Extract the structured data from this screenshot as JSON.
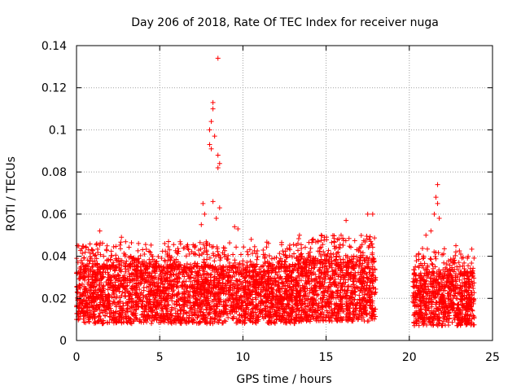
{
  "chart_data": {
    "type": "scatter",
    "title": "Day 206 of 2018, Rate Of TEC Index for receiver nuga",
    "xlabel": "GPS time / hours",
    "ylabel": "ROTI / TECUs",
    "xlim": [
      0,
      25
    ],
    "ylim": [
      0,
      0.14
    ],
    "xticks": [
      0,
      5,
      10,
      15,
      20,
      25
    ],
    "yticks": [
      0,
      0.02,
      0.04,
      0.06,
      0.08,
      0.1,
      0.12,
      0.14
    ],
    "ytick_labels": [
      "0",
      "0.02",
      "0.04",
      "0.06",
      "0.08",
      "0.1",
      "0.12",
      "0.14"
    ],
    "grid": true,
    "marker": "+",
    "marker_color": "#ff0000",
    "series": [
      {
        "name": "ROTI",
        "segments": [
          {
            "x_start": 0.0,
            "x_end": 13.3,
            "typical_low": 0.008,
            "typical_high": 0.035
          },
          {
            "x_start": 13.3,
            "x_end": 18.0,
            "typical_low": 0.009,
            "typical_high": 0.038
          },
          {
            "x_start": 20.2,
            "x_end": 23.9,
            "typical_low": 0.007,
            "typical_high": 0.032
          }
        ],
        "notable_points": [
          {
            "x": 8.5,
            "y": 0.134
          },
          {
            "x": 8.2,
            "y": 0.113
          },
          {
            "x": 8.2,
            "y": 0.11
          },
          {
            "x": 8.1,
            "y": 0.104
          },
          {
            "x": 8.0,
            "y": 0.1
          },
          {
            "x": 8.3,
            "y": 0.097
          },
          {
            "x": 8.0,
            "y": 0.093
          },
          {
            "x": 8.1,
            "y": 0.091
          },
          {
            "x": 8.5,
            "y": 0.088
          },
          {
            "x": 8.6,
            "y": 0.084
          },
          {
            "x": 8.5,
            "y": 0.082
          },
          {
            "x": 7.6,
            "y": 0.065
          },
          {
            "x": 8.6,
            "y": 0.063
          },
          {
            "x": 8.2,
            "y": 0.066
          },
          {
            "x": 7.7,
            "y": 0.06
          },
          {
            "x": 8.4,
            "y": 0.058
          },
          {
            "x": 7.5,
            "y": 0.055
          },
          {
            "x": 21.7,
            "y": 0.074
          },
          {
            "x": 21.6,
            "y": 0.068
          },
          {
            "x": 21.7,
            "y": 0.065
          },
          {
            "x": 21.5,
            "y": 0.06
          },
          {
            "x": 21.8,
            "y": 0.058
          },
          {
            "x": 21.3,
            "y": 0.052
          },
          {
            "x": 17.5,
            "y": 0.06
          },
          {
            "x": 17.8,
            "y": 0.06
          },
          {
            "x": 16.2,
            "y": 0.057
          },
          {
            "x": 15.9,
            "y": 0.05
          },
          {
            "x": 9.5,
            "y": 0.054
          },
          {
            "x": 9.7,
            "y": 0.053
          },
          {
            "x": 1.4,
            "y": 0.052
          },
          {
            "x": 2.7,
            "y": 0.049
          },
          {
            "x": 13.4,
            "y": 0.05
          },
          {
            "x": 14.9,
            "y": 0.049
          },
          {
            "x": 22.8,
            "y": 0.045
          },
          {
            "x": 21.0,
            "y": 0.05
          },
          {
            "x": 10.5,
            "y": 0.048
          },
          {
            "x": 6.5,
            "y": 0.044
          },
          {
            "x": 5.3,
            "y": 0.046
          }
        ]
      }
    ]
  }
}
